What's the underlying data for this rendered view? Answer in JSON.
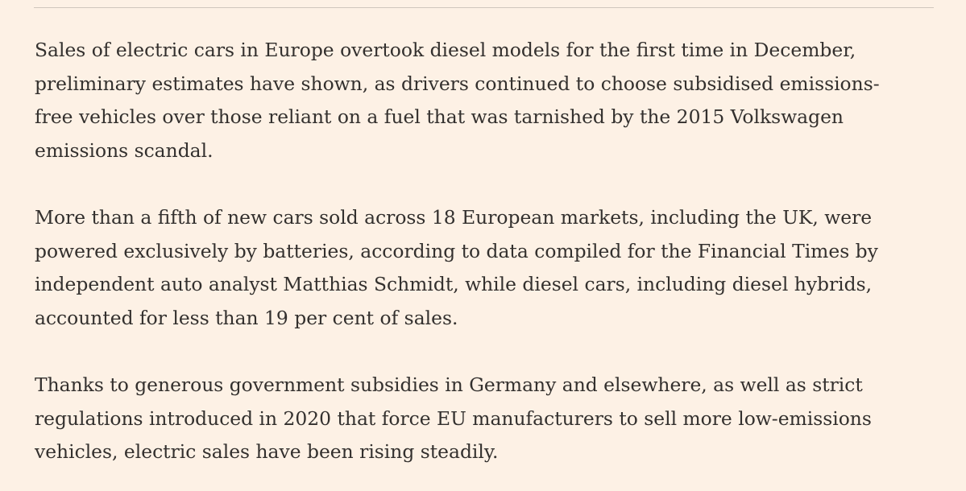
{
  "article": {
    "paragraphs": [
      {
        "lines": [
          "Sales of electric cars in Europe overtook diesel models for the first time in December,",
          "preliminary estimates have shown, as drivers continued to choose subsidised emissions-",
          "free vehicles over those reliant on a fuel that was tarnished by the 2015 Volkswagen",
          "emissions scandal."
        ]
      },
      {
        "lines": [
          "More than a fifth of new cars sold across 18 European markets, including the UK, were",
          "powered exclusively by batteries, according to data compiled for the Financial Times by",
          "independent auto analyst Matthias Schmidt, while diesel cars, including diesel hybrids,",
          "accounted for less than 19 per cent of sales."
        ]
      },
      {
        "lines": [
          "Thanks to generous government subsidies in Germany and elsewhere, as well as strict",
          "regulations introduced in 2020 that force EU manufacturers to sell more low-emissions",
          "vehicles, electric sales have been rising steadily."
        ]
      }
    ]
  },
  "colors": {
    "background": "#fdf1e5",
    "text": "#33302e",
    "divider": "#cfc6bd"
  }
}
